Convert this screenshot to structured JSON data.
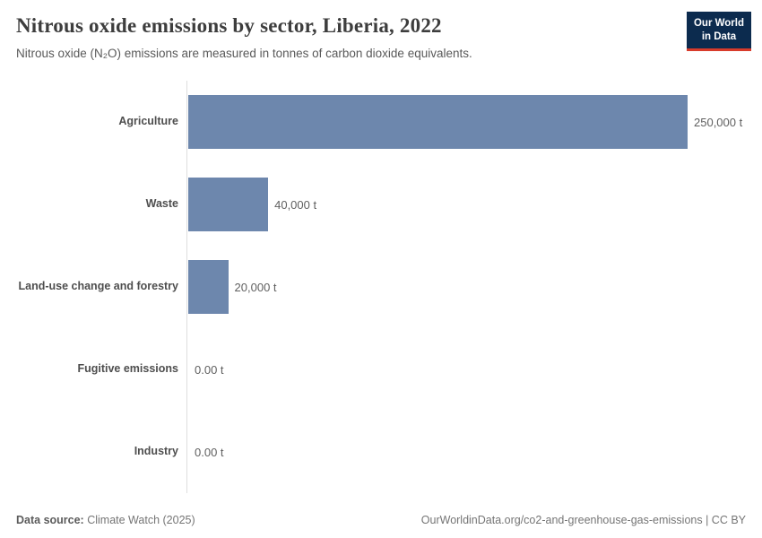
{
  "header": {
    "title": "Nitrous oxide emissions by sector, Liberia, 2022",
    "subtitle": "Nitrous oxide (N₂O) emissions are measured in tonnes of carbon dioxide equivalents.",
    "logo": {
      "line1": "Our World",
      "line2": "in Data",
      "bg_color": "#0c2b4e",
      "accent_color": "#d83b2b"
    }
  },
  "chart_data": {
    "type": "bar",
    "orientation": "horizontal",
    "title": "Nitrous oxide emissions by sector, Liberia, 2022",
    "subtitle": "Nitrous oxide (N₂O) emissions are measured in tonnes of carbon dioxide equivalents.",
    "categories": [
      "Agriculture",
      "Waste",
      "Land-use change and forestry",
      "Fugitive emissions",
      "Industry"
    ],
    "values": [
      250000,
      40000,
      20000,
      0,
      0
    ],
    "value_labels": [
      "250,000 t",
      "40,000 t",
      "20,000 t",
      "0.00 t",
      "0.00 t"
    ],
    "unit": "tonnes of carbon dioxide equivalents",
    "xlabel": "",
    "ylabel": "",
    "xlim": [
      0,
      250000
    ],
    "grid": false,
    "legend": "none",
    "bar_color": "#6d87ad",
    "axis_color": "#dedede"
  },
  "footer": {
    "source_label": "Data source:",
    "source_value": "Climate Watch (2025)",
    "attribution": "OurWorldinData.org/co2-and-greenhouse-gas-emissions | CC BY"
  }
}
